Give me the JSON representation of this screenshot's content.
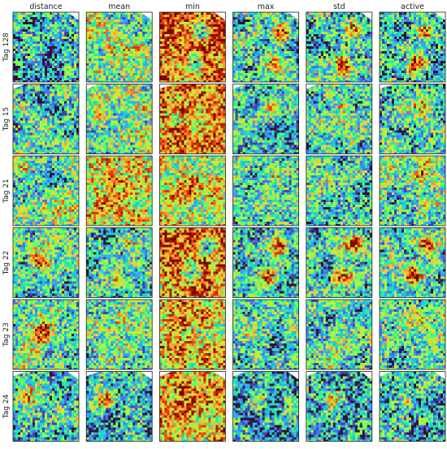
{
  "columns": [
    "distance",
    "mean",
    "min",
    "max",
    "std",
    "active"
  ],
  "rows": [
    "Tag 128",
    "Tag 15",
    "Tag 21",
    "Tag 22",
    "Tag 23",
    "Tag 24"
  ],
  "colormap": [
    "#30123b",
    "#4145ab",
    "#4675ed",
    "#39a2fc",
    "#1bcfd4",
    "#24eca6",
    "#61fc6c",
    "#a4fc3b",
    "#d1e834",
    "#f3c63a",
    "#fe9b2d",
    "#f36315",
    "#d93806",
    "#b11901",
    "#7a0402"
  ],
  "panels": [
    [
      {
        "base": 0.28,
        "blobs": [
          [
            0.45,
            0.55,
            0.22,
            -0.12
          ]
        ]
      },
      {
        "base": 0.45,
        "blobs": [
          [
            0.4,
            0.6,
            0.25,
            0.05
          ]
        ]
      },
      {
        "base": 0.78,
        "blobs": [
          [
            0.6,
            0.25,
            0.14,
            -0.55
          ],
          [
            0.5,
            0.7,
            0.14,
            -0.5
          ]
        ]
      },
      {
        "base": 0.3,
        "blobs": [
          [
            0.7,
            0.25,
            0.14,
            0.55
          ],
          [
            0.55,
            0.72,
            0.14,
            0.55
          ]
        ]
      },
      {
        "base": 0.3,
        "blobs": [
          [
            0.7,
            0.25,
            0.14,
            0.55
          ],
          [
            0.55,
            0.72,
            0.14,
            0.55
          ]
        ]
      },
      {
        "base": 0.3,
        "blobs": [
          [
            0.7,
            0.25,
            0.14,
            0.55
          ],
          [
            0.55,
            0.72,
            0.14,
            0.55
          ]
        ]
      }
    ],
    [
      {
        "base": 0.35,
        "blobs": [
          [
            0.5,
            0.25,
            0.15,
            -0.1
          ]
        ]
      },
      {
        "base": 0.45,
        "blobs": [
          [
            0.6,
            0.35,
            0.22,
            0.08
          ]
        ]
      },
      {
        "base": 0.72,
        "blobs": [
          [
            0.5,
            0.5,
            0.3,
            -0.08
          ]
        ]
      },
      {
        "base": 0.32,
        "blobs": [
          [
            0.55,
            0.3,
            0.15,
            0.25
          ]
        ]
      },
      {
        "base": 0.32,
        "blobs": [
          [
            0.55,
            0.3,
            0.15,
            0.25
          ]
        ]
      },
      {
        "base": 0.36,
        "blobs": [
          [
            0.65,
            0.3,
            0.18,
            0.3
          ]
        ]
      }
    ],
    [
      {
        "base": 0.45,
        "blobs": [
          [
            0.55,
            0.3,
            0.16,
            -0.2
          ]
        ]
      },
      {
        "base": 0.55,
        "blobs": [
          [
            0.45,
            0.5,
            0.28,
            0.15
          ]
        ]
      },
      {
        "base": 0.55,
        "blobs": [
          [
            0.4,
            0.5,
            0.28,
            0.1
          ]
        ]
      },
      {
        "base": 0.34,
        "blobs": [
          [
            0.55,
            0.3,
            0.15,
            0.2
          ]
        ]
      },
      {
        "base": 0.36,
        "blobs": [
          [
            0.6,
            0.3,
            0.15,
            0.2
          ]
        ]
      },
      {
        "base": 0.38,
        "blobs": [
          [
            0.6,
            0.25,
            0.15,
            0.35
          ]
        ]
      }
    ],
    [
      {
        "base": 0.35,
        "blobs": [
          [
            0.45,
            0.45,
            0.2,
            0.35
          ]
        ]
      },
      {
        "base": 0.32,
        "blobs": [
          [
            0.65,
            0.2,
            0.12,
            0.45
          ],
          [
            0.45,
            0.7,
            0.12,
            0.35
          ]
        ]
      },
      {
        "base": 0.78,
        "blobs": [
          [
            0.7,
            0.25,
            0.13,
            -0.6
          ],
          [
            0.5,
            0.65,
            0.13,
            -0.55
          ]
        ]
      },
      {
        "base": 0.3,
        "blobs": [
          [
            0.7,
            0.22,
            0.14,
            0.6
          ],
          [
            0.5,
            0.67,
            0.13,
            0.55
          ]
        ]
      },
      {
        "base": 0.3,
        "blobs": [
          [
            0.7,
            0.22,
            0.14,
            0.6
          ],
          [
            0.5,
            0.67,
            0.13,
            0.55
          ]
        ]
      },
      {
        "base": 0.32,
        "blobs": [
          [
            0.7,
            0.22,
            0.14,
            0.6
          ],
          [
            0.5,
            0.67,
            0.13,
            0.55
          ]
        ]
      }
    ],
    [
      {
        "base": 0.38,
        "blobs": [
          [
            0.45,
            0.45,
            0.18,
            0.4
          ]
        ]
      },
      {
        "base": 0.42,
        "blobs": [
          [
            0.4,
            0.4,
            0.2,
            0.1
          ]
        ]
      },
      {
        "base": 0.62,
        "blobs": [
          [
            0.35,
            0.6,
            0.25,
            0.08
          ]
        ]
      },
      {
        "base": 0.34,
        "blobs": [
          [
            0.55,
            0.25,
            0.12,
            0.15
          ]
        ]
      },
      {
        "base": 0.34,
        "blobs": [
          [
            0.6,
            0.25,
            0.12,
            0.15
          ]
        ]
      },
      {
        "base": 0.36,
        "blobs": [
          [
            0.55,
            0.3,
            0.14,
            0.2
          ]
        ]
      }
    ],
    [
      {
        "base": 0.3,
        "blobs": [
          [
            0.3,
            0.35,
            0.18,
            0.4
          ]
        ]
      },
      {
        "base": 0.28,
        "blobs": [
          [
            0.3,
            0.4,
            0.12,
            0.45
          ]
        ]
      },
      {
        "base": 0.65,
        "blobs": [
          [
            0.3,
            0.45,
            0.25,
            0.12
          ]
        ]
      },
      {
        "base": 0.24,
        "blobs": [
          [
            0.35,
            0.4,
            0.12,
            0.35
          ]
        ]
      },
      {
        "base": 0.26,
        "blobs": [
          [
            0.38,
            0.45,
            0.12,
            0.4
          ]
        ]
      },
      {
        "base": 0.26,
        "blobs": [
          [
            0.4,
            0.4,
            0.12,
            0.35
          ]
        ]
      }
    ]
  ]
}
